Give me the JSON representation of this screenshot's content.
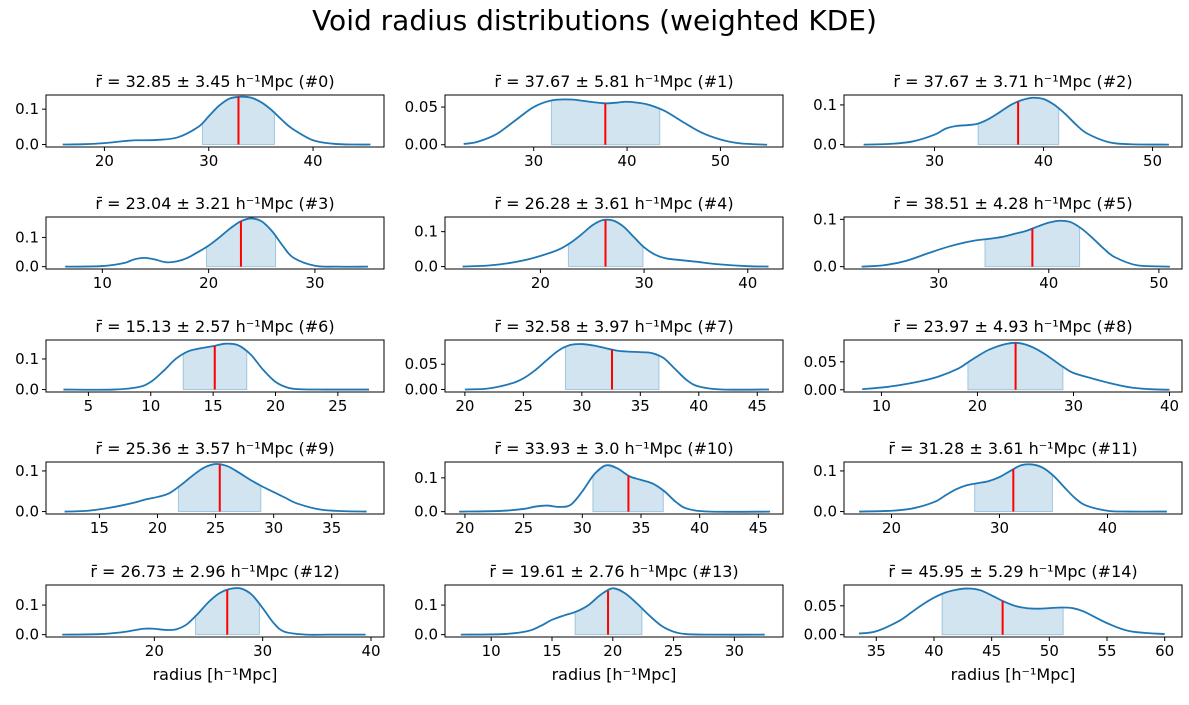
{
  "figure": {
    "suptitle": "Void radius distributions (weighted KDE)"
  },
  "chart_data": [
    {
      "type": "area",
      "title": "r̄ = 32.85 ± 3.45 h⁻¹Mpc (#0)",
      "mean": 32.85,
      "std": 3.45,
      "band": [
        29.4,
        36.3
      ],
      "xlim": [
        14.4,
        46.8
      ],
      "ylim": [
        -0.007,
        0.14
      ],
      "xticks": [
        20,
        30,
        40
      ],
      "yticks": [
        0.0,
        0.1
      ],
      "ytick_labels": [
        "0.0",
        "0.1"
      ],
      "xlabel": "",
      "ylabel": "",
      "x": [
        16,
        18,
        20,
        22,
        23,
        25,
        27,
        29,
        30,
        31,
        32,
        33,
        34,
        35,
        36,
        37,
        38,
        40,
        42,
        44,
        45.5
      ],
      "y": [
        0.0,
        0.001,
        0.004,
        0.01,
        0.012,
        0.013,
        0.02,
        0.05,
        0.08,
        0.11,
        0.13,
        0.135,
        0.133,
        0.12,
        0.098,
        0.07,
        0.045,
        0.012,
        0.002,
        0.0,
        0.0
      ]
    },
    {
      "type": "area",
      "title": "r̄ = 37.67 ± 5.81 h⁻¹Mpc (#1)",
      "mean": 37.67,
      "std": 5.81,
      "band": [
        31.9,
        43.5
      ],
      "xlim": [
        20.5,
        56.7
      ],
      "ylim": [
        -0.003,
        0.066
      ],
      "xticks": [
        30,
        40,
        50
      ],
      "yticks": [
        0.0,
        0.05
      ],
      "ytick_labels": [
        "0.00",
        "0.05"
      ],
      "xlabel": "",
      "ylabel": "",
      "x": [
        22.5,
        24,
        26,
        28,
        30,
        32,
        34,
        36,
        37.67,
        39,
        40,
        42,
        44,
        46,
        48,
        50,
        52,
        55
      ],
      "y": [
        0.001,
        0.004,
        0.014,
        0.032,
        0.05,
        0.059,
        0.06,
        0.057,
        0.055,
        0.056,
        0.057,
        0.054,
        0.045,
        0.03,
        0.016,
        0.007,
        0.002,
        0.0
      ]
    },
    {
      "type": "area",
      "title": "r̄ = 37.67 ± 3.71 h⁻¹Mpc (#2)",
      "mean": 37.67,
      "std": 3.71,
      "band": [
        34.0,
        41.4
      ],
      "xlim": [
        21.7,
        52.7
      ],
      "ylim": [
        -0.006,
        0.125
      ],
      "xticks": [
        30,
        40,
        50
      ],
      "yticks": [
        0.0,
        0.1
      ],
      "ytick_labels": [
        "0.0",
        "0.1"
      ],
      "xlabel": "",
      "ylabel": "",
      "x": [
        23.5,
        26,
        28,
        30,
        31,
        32,
        33,
        34,
        35,
        36,
        37,
        38,
        39,
        40,
        41,
        42,
        43,
        44,
        46,
        48,
        51.5
      ],
      "y": [
        0.0,
        0.002,
        0.008,
        0.025,
        0.04,
        0.047,
        0.049,
        0.053,
        0.065,
        0.082,
        0.1,
        0.112,
        0.118,
        0.115,
        0.1,
        0.077,
        0.05,
        0.028,
        0.006,
        0.001,
        0.0
      ]
    },
    {
      "type": "area",
      "title": "r̄ = 23.04 ± 3.21 h⁻¹Mpc (#3)",
      "mean": 23.04,
      "std": 3.21,
      "band": [
        19.8,
        26.3
      ],
      "xlim": [
        4.7,
        36.5
      ],
      "ylim": [
        -0.008,
        0.17
      ],
      "xticks": [
        10,
        20,
        30
      ],
      "yticks": [
        0.0,
        0.1
      ],
      "ytick_labels": [
        "0.0",
        "0.1"
      ],
      "xlabel": "",
      "ylabel": "",
      "x": [
        6.5,
        10,
        12,
        13,
        14,
        15,
        16,
        17,
        18,
        19,
        20,
        21,
        22,
        23,
        24,
        25,
        26,
        27,
        28,
        30,
        32,
        35
      ],
      "y": [
        0.0,
        0.002,
        0.012,
        0.025,
        0.03,
        0.024,
        0.015,
        0.018,
        0.03,
        0.05,
        0.072,
        0.1,
        0.13,
        0.155,
        0.165,
        0.155,
        0.12,
        0.07,
        0.03,
        0.003,
        0.0,
        0.0
      ]
    },
    {
      "type": "area",
      "title": "r̄ = 26.28 ± 3.61 h⁻¹Mpc (#4)",
      "mean": 26.28,
      "std": 3.61,
      "band": [
        22.7,
        29.9
      ],
      "xlim": [
        10.8,
        43.4
      ],
      "ylim": [
        -0.007,
        0.142
      ],
      "xticks": [
        20,
        30,
        40
      ],
      "yticks": [
        0.0,
        0.1
      ],
      "ytick_labels": [
        "0.0",
        "0.1"
      ],
      "xlabel": "",
      "ylabel": "",
      "x": [
        12.5,
        15,
        17,
        19,
        21,
        22,
        23,
        24,
        25,
        26,
        27,
        28,
        29,
        30,
        31,
        32,
        33,
        35,
        37,
        40,
        42
      ],
      "y": [
        0.0,
        0.003,
        0.01,
        0.022,
        0.04,
        0.052,
        0.07,
        0.093,
        0.118,
        0.133,
        0.132,
        0.115,
        0.085,
        0.055,
        0.035,
        0.024,
        0.02,
        0.014,
        0.007,
        0.001,
        0.0
      ]
    },
    {
      "type": "area",
      "title": "r̄ = 38.51 ± 4.28 h⁻¹Mpc (#5)",
      "mean": 38.51,
      "std": 4.28,
      "band": [
        34.2,
        42.8
      ],
      "xlim": [
        21.4,
        52.1
      ],
      "ylim": [
        -0.005,
        0.105
      ],
      "xticks": [
        30,
        40,
        50
      ],
      "yticks": [
        0.0,
        0.1
      ],
      "ytick_labels": [
        "0.0",
        "0.1"
      ],
      "xlabel": "",
      "ylabel": "",
      "x": [
        23,
        25,
        27,
        29,
        31,
        33,
        35,
        36,
        37,
        38,
        39,
        40,
        41,
        42,
        43,
        44,
        45,
        46,
        48,
        51
      ],
      "y": [
        0.0,
        0.003,
        0.012,
        0.028,
        0.043,
        0.054,
        0.06,
        0.064,
        0.07,
        0.076,
        0.085,
        0.093,
        0.097,
        0.094,
        0.08,
        0.06,
        0.038,
        0.02,
        0.003,
        0.0
      ]
    },
    {
      "type": "area",
      "title": "r̄ = 15.13 ± 2.57 h⁻¹Mpc (#6)",
      "mean": 15.13,
      "std": 2.57,
      "band": [
        12.6,
        17.7
      ],
      "xlim": [
        1.6,
        28.7
      ],
      "ylim": [
        -0.008,
        0.162
      ],
      "xticks": [
        5,
        10,
        15,
        20,
        25
      ],
      "yticks": [
        0.0,
        0.1
      ],
      "ytick_labels": [
        "0.0",
        "0.1"
      ],
      "xlabel": "",
      "ylabel": "",
      "x": [
        3,
        7,
        9,
        10,
        11,
        12,
        13,
        14,
        15,
        16,
        17,
        18,
        19,
        20,
        21,
        22,
        24,
        27.5
      ],
      "y": [
        0.0,
        0.0,
        0.008,
        0.025,
        0.06,
        0.1,
        0.125,
        0.135,
        0.142,
        0.15,
        0.145,
        0.115,
        0.065,
        0.025,
        0.006,
        0.001,
        0.0,
        0.0
      ]
    },
    {
      "type": "area",
      "title": "r̄ = 32.58 ± 3.97 h⁻¹Mpc (#7)",
      "mean": 32.58,
      "std": 3.97,
      "band": [
        28.6,
        36.6
      ],
      "xlim": [
        18.3,
        47.2
      ],
      "ylim": [
        -0.005,
        0.098
      ],
      "xticks": [
        20,
        25,
        30,
        35,
        40,
        45
      ],
      "yticks": [
        0.0,
        0.05
      ],
      "ytick_labels": [
        "0.00",
        "0.05"
      ],
      "xlabel": "",
      "ylabel": "",
      "x": [
        20,
        22,
        24,
        25,
        26,
        27,
        28,
        29,
        30,
        31,
        32,
        33,
        34,
        35,
        36,
        37,
        38,
        39,
        40,
        42,
        46
      ],
      "y": [
        0.0,
        0.002,
        0.012,
        0.022,
        0.038,
        0.058,
        0.077,
        0.088,
        0.09,
        0.087,
        0.082,
        0.077,
        0.075,
        0.074,
        0.072,
        0.062,
        0.04,
        0.018,
        0.006,
        0.0,
        0.0
      ]
    },
    {
      "type": "area",
      "title": "r̄ = 23.97 ± 4.93 h⁻¹Mpc (#8)",
      "mean": 23.97,
      "std": 4.93,
      "band": [
        19.0,
        28.9
      ],
      "xlim": [
        6.1,
        41.3
      ],
      "ylim": [
        -0.004,
        0.089
      ],
      "xticks": [
        10,
        20,
        30,
        40
      ],
      "yticks": [
        0.0,
        0.05
      ],
      "ytick_labels": [
        "0.00",
        "0.05"
      ],
      "xlabel": "",
      "ylabel": "",
      "x": [
        8,
        11,
        14,
        16,
        18,
        19,
        20,
        21,
        22,
        23,
        24,
        25,
        26,
        27,
        28,
        29,
        30,
        32,
        34,
        36,
        38,
        40
      ],
      "y": [
        0.001,
        0.006,
        0.015,
        0.024,
        0.038,
        0.049,
        0.06,
        0.07,
        0.077,
        0.082,
        0.084,
        0.081,
        0.074,
        0.064,
        0.052,
        0.04,
        0.03,
        0.02,
        0.011,
        0.004,
        0.001,
        0.0
      ]
    },
    {
      "type": "area",
      "title": "r̄ = 25.36 ± 3.57 h⁻¹Mpc (#9)",
      "mean": 25.36,
      "std": 3.57,
      "band": [
        21.8,
        28.9
      ],
      "xlim": [
        10.4,
        39.5
      ],
      "ylim": [
        -0.006,
        0.122
      ],
      "xticks": [
        15,
        20,
        25,
        30,
        35
      ],
      "yticks": [
        0.0,
        0.1
      ],
      "ytick_labels": [
        "0.0",
        "0.1"
      ],
      "xlabel": "",
      "ylabel": "",
      "x": [
        12,
        14,
        16,
        18,
        19,
        20,
        21,
        22,
        23,
        24,
        25,
        26,
        27,
        28,
        29,
        30,
        31,
        32,
        34,
        36,
        38
      ],
      "y": [
        0.0,
        0.002,
        0.01,
        0.022,
        0.03,
        0.036,
        0.045,
        0.065,
        0.088,
        0.108,
        0.117,
        0.112,
        0.096,
        0.078,
        0.062,
        0.048,
        0.034,
        0.02,
        0.005,
        0.001,
        0.0
      ]
    },
    {
      "type": "area",
      "title": "r̄ = 33.93 ± 3.0 h⁻¹Mpc (#10)",
      "mean": 33.93,
      "std": 3.0,
      "band": [
        30.9,
        36.9
      ],
      "xlim": [
        18.3,
        47.1
      ],
      "ylim": [
        -0.007,
        0.147
      ],
      "xticks": [
        20,
        25,
        30,
        35,
        40,
        45
      ],
      "yticks": [
        0.0,
        0.1
      ],
      "ytick_labels": [
        "0.0",
        "0.1"
      ],
      "xlabel": "",
      "ylabel": "",
      "x": [
        19.5,
        23,
        25,
        26,
        27,
        28,
        29,
        30,
        31,
        32,
        33,
        34,
        35,
        36,
        37,
        38,
        39,
        41,
        46
      ],
      "y": [
        0.0,
        0.002,
        0.008,
        0.015,
        0.018,
        0.014,
        0.02,
        0.06,
        0.11,
        0.137,
        0.128,
        0.105,
        0.094,
        0.083,
        0.06,
        0.028,
        0.008,
        0.0,
        0.0
      ]
    },
    {
      "type": "area",
      "title": "r̄ = 31.28 ± 3.61 h⁻¹Mpc (#11)",
      "mean": 31.28,
      "std": 3.61,
      "band": [
        27.7,
        34.9
      ],
      "xlim": [
        15.6,
        46.9
      ],
      "ylim": [
        -0.006,
        0.122
      ],
      "xticks": [
        20,
        30,
        40
      ],
      "yticks": [
        0.0,
        0.1
      ],
      "ytick_labels": [
        "0.0",
        "0.1"
      ],
      "xlabel": "",
      "ylabel": "",
      "x": [
        17,
        20,
        22,
        24,
        25,
        26,
        27,
        28,
        29,
        30,
        31,
        32,
        33,
        34,
        35,
        36,
        37,
        38,
        40,
        42,
        45.5
      ],
      "y": [
        0.0,
        0.002,
        0.008,
        0.024,
        0.04,
        0.055,
        0.065,
        0.07,
        0.075,
        0.085,
        0.1,
        0.114,
        0.116,
        0.108,
        0.088,
        0.06,
        0.033,
        0.015,
        0.002,
        0.0,
        0.0
      ]
    },
    {
      "type": "area",
      "title": "r̄ = 26.73 ± 2.96 h⁻¹Mpc (#12)",
      "mean": 26.73,
      "std": 2.96,
      "band": [
        23.8,
        29.7
      ],
      "xlim": [
        10.0,
        41.2
      ],
      "ylim": [
        -0.008,
        0.168
      ],
      "xticks": [
        20,
        30,
        40
      ],
      "yticks": [
        0.0,
        0.1
      ],
      "ytick_labels": [
        "0.0",
        "0.1"
      ],
      "xlabel": "radius [h⁻¹Mpc]",
      "ylabel": "",
      "x": [
        11.5,
        15,
        17,
        18,
        19,
        20,
        21,
        22,
        23,
        24,
        25,
        26,
        27,
        28,
        29,
        30,
        31,
        32,
        34,
        36,
        39.5
      ],
      "y": [
        0.0,
        0.002,
        0.008,
        0.014,
        0.02,
        0.02,
        0.016,
        0.018,
        0.035,
        0.07,
        0.11,
        0.14,
        0.155,
        0.156,
        0.135,
        0.09,
        0.04,
        0.01,
        0.0,
        0.0,
        0.0
      ]
    },
    {
      "type": "area",
      "title": "r̄ = 19.61 ± 2.76 h⁻¹Mpc (#13)",
      "mean": 19.61,
      "std": 2.76,
      "band": [
        16.9,
        22.4
      ],
      "xlim": [
        6.2,
        34.0
      ],
      "ylim": [
        -0.008,
        0.168
      ],
      "xticks": [
        10,
        15,
        20,
        25,
        30
      ],
      "yticks": [
        0.0,
        0.1
      ],
      "ytick_labels": [
        "0.0",
        "0.1"
      ],
      "xlabel": "radius [h⁻¹Mpc]",
      "ylabel": "",
      "x": [
        7.5,
        11,
        13,
        14,
        15,
        16,
        17,
        18,
        19,
        20,
        21,
        22,
        23,
        24,
        25,
        26,
        28,
        32.5
      ],
      "y": [
        0.0,
        0.002,
        0.012,
        0.028,
        0.05,
        0.065,
        0.078,
        0.1,
        0.135,
        0.157,
        0.14,
        0.105,
        0.065,
        0.03,
        0.01,
        0.002,
        0.0,
        0.0
      ]
    },
    {
      "type": "area",
      "title": "r̄ = 45.95 ± 5.29 h⁻¹Mpc (#14)",
      "mean": 45.95,
      "std": 5.29,
      "band": [
        40.7,
        51.2
      ],
      "xlim": [
        32.2,
        61.5
      ],
      "ylim": [
        -0.004,
        0.086
      ],
      "xticks": [
        35,
        40,
        45,
        50,
        55,
        60
      ],
      "yticks": [
        0.0,
        0.05
      ],
      "ytick_labels": [
        "0.00",
        "0.05"
      ],
      "xlabel": "radius [h⁻¹Mpc]",
      "ylabel": "",
      "x": [
        33.5,
        35,
        37,
        38,
        39,
        40,
        41,
        42,
        43,
        44,
        45,
        46,
        47,
        48,
        49,
        50,
        51,
        52,
        53,
        55,
        57,
        60
      ],
      "y": [
        0.002,
        0.006,
        0.024,
        0.038,
        0.052,
        0.064,
        0.073,
        0.078,
        0.08,
        0.077,
        0.068,
        0.058,
        0.05,
        0.046,
        0.045,
        0.046,
        0.047,
        0.046,
        0.04,
        0.02,
        0.006,
        0.001
      ]
    }
  ]
}
